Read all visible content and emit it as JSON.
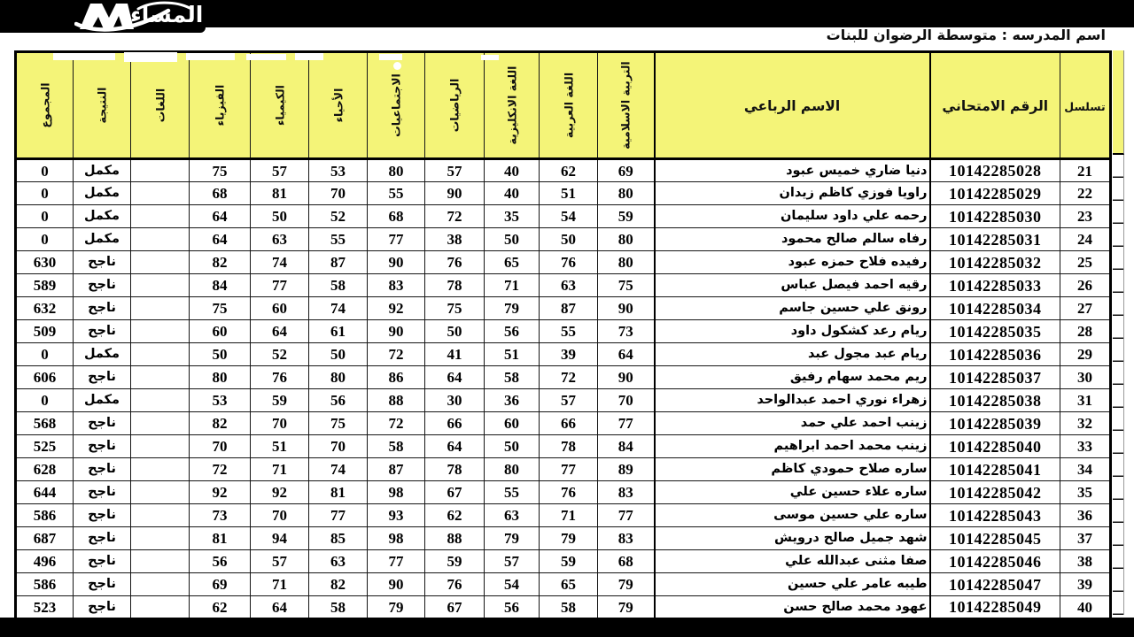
{
  "brand": {
    "logo_text": "المساء"
  },
  "header": {
    "school_label": "اسم المدرسه : متوسطة الرضوان للبنات"
  },
  "table": {
    "header_fill_color": "#F4F478",
    "columns": [
      {
        "key": "serial",
        "label": "تسلسل",
        "rotated": false
      },
      {
        "key": "exam_no",
        "label": "الرقم الامتحاني",
        "rotated": false
      },
      {
        "key": "name",
        "label": "الاسم الرباعي",
        "rotated": false
      },
      {
        "key": "islamic",
        "label": "التربية الاسلامية",
        "rotated": true
      },
      {
        "key": "arabic",
        "label": "اللغة العربية",
        "rotated": true
      },
      {
        "key": "english",
        "label": "اللغة الانكليزية",
        "rotated": true
      },
      {
        "key": "math",
        "label": "الرياضيات",
        "rotated": true
      },
      {
        "key": "social",
        "label": "الاجتماعيات",
        "rotated": true
      },
      {
        "key": "biology",
        "label": "الأحياء",
        "rotated": true
      },
      {
        "key": "chemistry",
        "label": "الكيمياء",
        "rotated": true
      },
      {
        "key": "physics",
        "label": "الفيزياء",
        "rotated": true
      },
      {
        "key": "languages",
        "label": "اللغات",
        "rotated": true
      },
      {
        "key": "result",
        "label": "النتيجة",
        "rotated": true
      },
      {
        "key": "total",
        "label": "المجموع",
        "rotated": true
      }
    ],
    "rows": [
      [
        "21",
        "10142285028",
        "دنيا ضاري خميس عبود",
        "69",
        "62",
        "40",
        "57",
        "80",
        "53",
        "57",
        "75",
        "",
        "مكمل",
        "0"
      ],
      [
        "22",
        "10142285029",
        "راويا فوزي كاظم زيدان",
        "80",
        "51",
        "40",
        "90",
        "55",
        "70",
        "81",
        "68",
        "",
        "مكمل",
        "0"
      ],
      [
        "23",
        "10142285030",
        "رحمه علي داود سليمان",
        "59",
        "54",
        "35",
        "72",
        "68",
        "52",
        "50",
        "64",
        "",
        "مكمل",
        "0"
      ],
      [
        "24",
        "10142285031",
        "رفاه سالم صالح محمود",
        "80",
        "50",
        "50",
        "38",
        "77",
        "55",
        "63",
        "64",
        "",
        "مكمل",
        "0"
      ],
      [
        "25",
        "10142285032",
        "رفيده فلاح حمزه عبود",
        "80",
        "76",
        "65",
        "76",
        "90",
        "87",
        "74",
        "82",
        "",
        "ناجح",
        "630"
      ],
      [
        "26",
        "10142285033",
        "رقيه احمد فيصل عباس",
        "75",
        "63",
        "71",
        "78",
        "83",
        "58",
        "77",
        "84",
        "",
        "ناجح",
        "589"
      ],
      [
        "27",
        "10142285034",
        "رونق علي حسين جاسم",
        "90",
        "87",
        "79",
        "75",
        "92",
        "74",
        "60",
        "75",
        "",
        "ناجح",
        "632"
      ],
      [
        "28",
        "10142285035",
        "ريام رعد كشكول داود",
        "73",
        "55",
        "56",
        "50",
        "90",
        "61",
        "64",
        "60",
        "",
        "ناجح",
        "509"
      ],
      [
        "29",
        "10142285036",
        "ريام عبد مجول عبد",
        "64",
        "39",
        "51",
        "41",
        "72",
        "50",
        "52",
        "50",
        "",
        "مكمل",
        "0"
      ],
      [
        "30",
        "10142285037",
        "ريم محمد سهام رفيق",
        "90",
        "72",
        "58",
        "64",
        "86",
        "80",
        "76",
        "80",
        "",
        "ناجح",
        "606"
      ],
      [
        "31",
        "10142285038",
        "زهراء نوري احمد عبدالواحد",
        "70",
        "57",
        "36",
        "30",
        "88",
        "56",
        "59",
        "53",
        "",
        "مكمل",
        "0"
      ],
      [
        "32",
        "10142285039",
        "زينب احمد علي حمد",
        "77",
        "66",
        "60",
        "66",
        "72",
        "75",
        "70",
        "82",
        "",
        "ناجح",
        "568"
      ],
      [
        "33",
        "10142285040",
        "زينب محمد احمد ابراهيم",
        "84",
        "78",
        "50",
        "64",
        "58",
        "70",
        "51",
        "70",
        "",
        "ناجح",
        "525"
      ],
      [
        "34",
        "10142285041",
        "ساره صلاح حمودي كاظم",
        "89",
        "77",
        "80",
        "78",
        "87",
        "74",
        "71",
        "72",
        "",
        "ناجح",
        "628"
      ],
      [
        "35",
        "10142285042",
        "ساره علاء حسين علي",
        "83",
        "76",
        "55",
        "67",
        "98",
        "81",
        "92",
        "92",
        "",
        "ناجح",
        "644"
      ],
      [
        "36",
        "10142285043",
        "ساره علي حسين موسى",
        "77",
        "71",
        "63",
        "62",
        "93",
        "77",
        "70",
        "73",
        "",
        "ناجح",
        "586"
      ],
      [
        "37",
        "10142285045",
        "شهد جميل صالح درويش",
        "83",
        "79",
        "79",
        "88",
        "98",
        "85",
        "94",
        "81",
        "",
        "ناجح",
        "687"
      ],
      [
        "38",
        "10142285046",
        "صفا مثنى عبدالله علي",
        "68",
        "59",
        "57",
        "59",
        "77",
        "63",
        "57",
        "56",
        "",
        "ناجح",
        "496"
      ],
      [
        "39",
        "10142285047",
        "طيبه عامر علي حسين",
        "79",
        "65",
        "54",
        "76",
        "90",
        "82",
        "71",
        "69",
        "",
        "ناجح",
        "586"
      ],
      [
        "40",
        "10142285049",
        "عهود محمد صالح حسن",
        "79",
        "58",
        "56",
        "67",
        "79",
        "58",
        "64",
        "62",
        "",
        "ناجح",
        "523"
      ]
    ]
  }
}
